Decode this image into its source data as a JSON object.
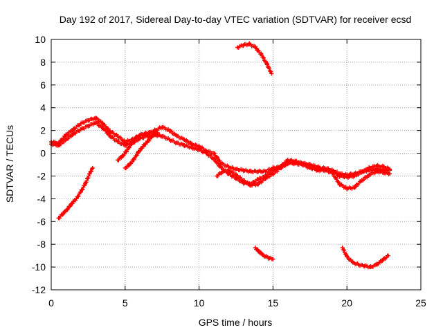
{
  "chart_data": {
    "type": "scatter",
    "title": "Day 192 of 2017, Sidereal Day-to-day VTEC variation (SDTVAR) for receiver ecsd",
    "xlabel": "GPS time / hours",
    "ylabel": "SDTVAR / TECUs",
    "xlim": [
      0,
      25
    ],
    "ylim": [
      -12,
      10
    ],
    "xticks": [
      0,
      5,
      10,
      15,
      20,
      25
    ],
    "yticks": [
      -12,
      -10,
      -8,
      -6,
      -4,
      -2,
      0,
      2,
      4,
      6,
      8,
      10
    ],
    "grid": true,
    "marker": "plus",
    "color": "#ff0000",
    "series": [
      {
        "name": "main-trace-a",
        "x": [
          0.0,
          0.5,
          1.0,
          1.5,
          2.0,
          2.5,
          3.0,
          3.5,
          4.0,
          4.5,
          5.0,
          5.5,
          6.0,
          6.5,
          7.0,
          7.5,
          8.0,
          8.5,
          9.0,
          9.5,
          10.0,
          10.5,
          11.0,
          11.5,
          12.0,
          12.5,
          13.0,
          13.5,
          14.0,
          14.5,
          15.0,
          15.5,
          16.0,
          16.5,
          17.0,
          17.5,
          18.0,
          18.5,
          19.0,
          19.5,
          20.0,
          20.5,
          21.0,
          21.5,
          22.0,
          22.5,
          22.9
        ],
        "y": [
          1.0,
          0.9,
          1.6,
          2.1,
          2.6,
          2.9,
          3.1,
          2.6,
          1.9,
          1.5,
          1.0,
          1.2,
          1.6,
          1.7,
          2.0,
          2.3,
          2.0,
          1.5,
          1.2,
          0.8,
          0.6,
          0.2,
          0.0,
          -0.9,
          -1.2,
          -1.4,
          -1.5,
          -1.6,
          -1.6,
          -1.6,
          -1.3,
          -1.2,
          -0.8,
          -0.9,
          -1.0,
          -1.3,
          -1.4,
          -1.3,
          -1.5,
          -1.8,
          -1.9,
          -1.8,
          -1.6,
          -1.5,
          -1.4,
          -1.5,
          -1.5
        ]
      },
      {
        "name": "main-trace-b",
        "x": [
          0.0,
          0.5,
          1.0,
          1.5,
          2.0,
          2.5,
          3.0,
          3.5,
          4.0,
          4.5,
          5.0,
          5.5,
          6.0,
          6.5,
          7.0,
          7.5,
          8.0,
          8.5,
          9.0,
          9.5,
          10.0,
          10.5,
          11.0,
          11.5,
          12.0,
          12.5,
          13.0,
          13.5,
          14.0,
          14.5,
          15.0,
          15.5,
          16.0,
          16.5,
          17.0,
          17.5,
          18.0,
          18.5,
          19.0,
          19.5,
          20.0,
          20.5,
          21.0,
          21.5,
          22.0,
          22.5,
          22.9
        ],
        "y": [
          0.8,
          0.7,
          1.2,
          1.7,
          2.1,
          2.4,
          2.7,
          2.2,
          1.5,
          1.0,
          0.7,
          0.9,
          1.3,
          1.5,
          1.6,
          1.5,
          1.2,
          0.9,
          0.7,
          0.5,
          0.3,
          0.0,
          -0.5,
          -1.3,
          -1.8,
          -2.2,
          -2.6,
          -2.7,
          -2.3,
          -2.0,
          -1.5,
          -1.2,
          -0.6,
          -0.7,
          -0.9,
          -1.0,
          -1.2,
          -1.4,
          -1.6,
          -2.0,
          -2.1,
          -2.0,
          -1.7,
          -1.3,
          -1.1,
          -1.2,
          -1.4
        ]
      },
      {
        "name": "main-trace-c",
        "x": [
          11.2,
          11.6,
          12.0,
          12.5,
          13.0,
          13.5,
          14.0,
          14.5,
          15.0,
          15.5,
          16.0,
          16.5,
          17.0,
          17.5,
          18.0,
          18.5,
          19.0,
          19.5,
          20.0,
          20.5,
          21.0,
          21.5,
          22.0,
          22.5,
          22.9
        ],
        "y": [
          -2.0,
          -1.6,
          -1.5,
          -1.9,
          -2.4,
          -2.8,
          -2.7,
          -2.2,
          -1.8,
          -1.3,
          -0.9,
          -0.8,
          -0.9,
          -1.1,
          -1.5,
          -1.5,
          -1.7,
          -2.7,
          -3.1,
          -3.0,
          -2.4,
          -1.9,
          -1.6,
          -1.7,
          -1.8
        ]
      },
      {
        "name": "arc-early-lower",
        "x": [
          0.5,
          0.8,
          1.1,
          1.4,
          1.7,
          2.0,
          2.3,
          2.6,
          2.8
        ],
        "y": [
          -5.7,
          -5.3,
          -4.9,
          -4.4,
          -4.0,
          -3.4,
          -2.7,
          -1.8,
          -1.3
        ]
      },
      {
        "name": "arc-morning-dip",
        "x": [
          4.5,
          4.8,
          5.1,
          5.4,
          5.7,
          6.0,
          6.3,
          6.6,
          6.9,
          7.2
        ],
        "y": [
          -0.6,
          -0.3,
          0.2,
          0.8,
          1.3,
          1.6,
          1.7,
          1.8,
          1.8,
          1.8
        ]
      },
      {
        "name": "arc-morning-dip-2",
        "x": [
          5.0,
          5.3,
          5.6,
          5.9,
          6.2,
          6.5,
          6.8
        ],
        "y": [
          -1.3,
          -1.0,
          -0.5,
          0.1,
          0.6,
          1.0,
          1.4
        ]
      },
      {
        "name": "arc-midday-high",
        "x": [
          12.6,
          13.0,
          13.4,
          13.8,
          14.2,
          14.6,
          14.9
        ],
        "y": [
          9.3,
          9.5,
          9.6,
          9.3,
          8.7,
          7.8,
          7.0
        ]
      },
      {
        "name": "arc-afternoon-low",
        "x": [
          13.8,
          14.1,
          14.4,
          14.7,
          15.0
        ],
        "y": [
          -8.3,
          -8.7,
          -9.0,
          -9.2,
          -9.3
        ]
      },
      {
        "name": "arc-evening-low",
        "x": [
          19.7,
          20.0,
          20.4,
          20.8,
          21.2,
          21.6,
          22.0,
          22.4,
          22.8
        ],
        "y": [
          -8.3,
          -9.1,
          -9.6,
          -9.8,
          -9.9,
          -10.0,
          -9.8,
          -9.4,
          -9.0
        ]
      }
    ]
  }
}
